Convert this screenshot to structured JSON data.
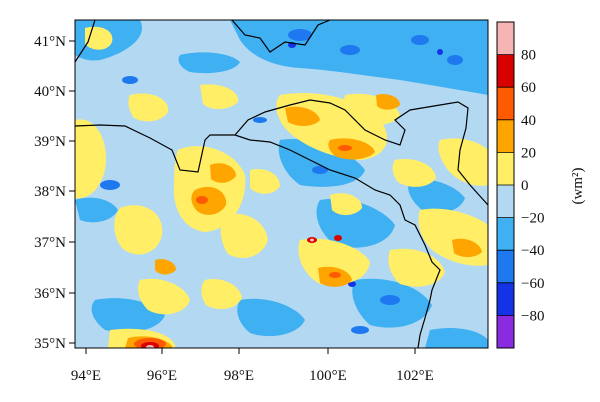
{
  "map": {
    "x_ticks": [
      "94°E",
      "96°E",
      "98°E",
      "100°E",
      "102°E"
    ],
    "y_ticks": [
      "35°N",
      "36°N",
      "37°N",
      "38°N",
      "39°N",
      "40°N",
      "41°N"
    ],
    "lon_range": [
      93.8,
      103.8
    ],
    "lat_range": [
      34.9,
      41.4
    ],
    "field_description": "contour field"
  },
  "colorbar": {
    "unit_label": "(wm²)",
    "tick_labels": [
      "80",
      "60",
      "40",
      "20",
      "0",
      "−20",
      "−40",
      "−60",
      "−80"
    ],
    "levels": [
      "above 80",
      "60 to 80",
      "40 to 60",
      "20 to 40",
      "0 to 20",
      "−20 to 0",
      "−40 to −20",
      "−60 to −40",
      "−80 to −60",
      "below −80"
    ],
    "colors": [
      "#f7b4b4",
      "#d90000",
      "#ff5a00",
      "#ffa500",
      "#ffee66",
      "#b3d9f2",
      "#3fb0f2",
      "#1e78f0",
      "#1432e6",
      "#8a2be2"
    ]
  }
}
